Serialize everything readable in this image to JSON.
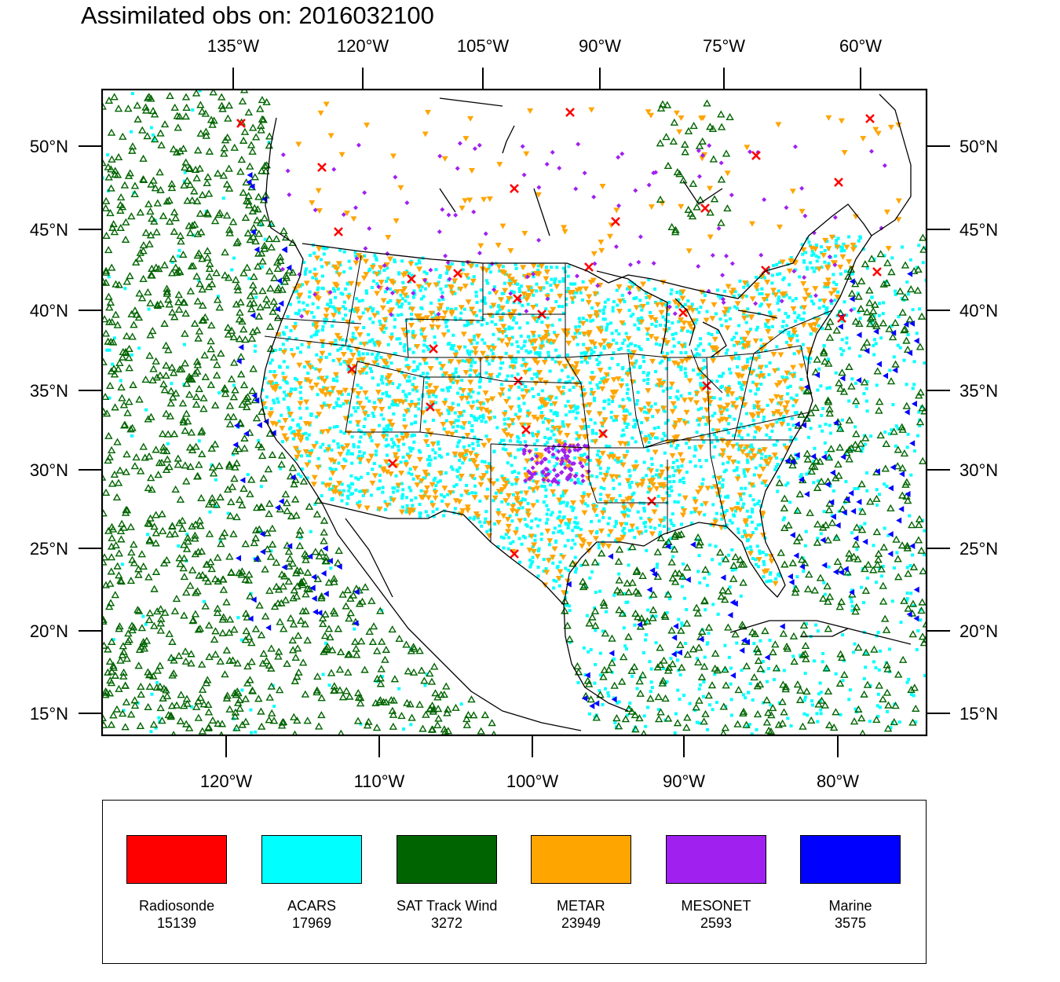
{
  "title": "Assimilated obs on: 2016032100",
  "top_lon_labels": [
    "135°W",
    "120°W",
    "105°W",
    "90°W",
    "75°W",
    "60°W"
  ],
  "bottom_lon_labels": [
    "120°W",
    "110°W",
    "100°W",
    "90°W",
    "80°W"
  ],
  "lat_labels": [
    "50°N",
    "45°N",
    "40°N",
    "35°N",
    "30°N",
    "25°N",
    "20°N",
    "15°N"
  ],
  "legend": [
    {
      "name": "Radiosonde",
      "count": "15139",
      "color": "#ff0000",
      "marker": "x-mark"
    },
    {
      "name": "ACARS",
      "count": "17969",
      "color": "#00ffff",
      "marker": "dot"
    },
    {
      "name": "SAT Track Wind",
      "count": "3272",
      "color": "#006400",
      "marker": "open-triangle-up"
    },
    {
      "name": "METAR",
      "count": "23949",
      "color": "#ffa500",
      "marker": "triangle-down"
    },
    {
      "name": "MESONET",
      "count": "2593",
      "color": "#a020f0",
      "marker": "diamond"
    },
    {
      "name": "Marine",
      "count": "3575",
      "color": "#0000ff",
      "marker": "triangle-left"
    }
  ]
}
